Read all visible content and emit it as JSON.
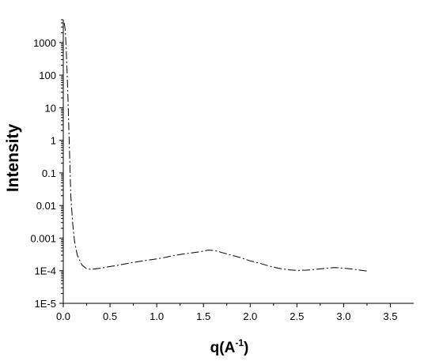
{
  "chart_data": {
    "type": "line",
    "title": "",
    "xlabel": "q(A",
    "xlabel_sup": "-1",
    "xlabel_close": ")",
    "ylabel": "Intensity",
    "y_scale": "log",
    "xlim": [
      0,
      3.75
    ],
    "ylim": [
      1e-05,
      5000
    ],
    "x_ticks": [
      "0.0",
      "0.5",
      "1.0",
      "1.5",
      "2.0",
      "2.5",
      "3.0",
      "3.5"
    ],
    "y_ticks": [
      "1E-5",
      "1E-4",
      "0.001",
      "0.01",
      "0.1",
      "1",
      "10",
      "100",
      "1000"
    ],
    "grid": false,
    "line_style": "dashed",
    "line_color": "#000000",
    "series": [
      {
        "x": [
          0.01,
          0.02,
          0.03,
          0.04,
          0.05,
          0.06,
          0.07,
          0.08,
          0.1,
          0.12,
          0.15,
          0.2,
          0.25,
          0.3,
          0.4,
          0.5,
          0.6,
          0.7,
          0.8,
          0.9,
          1.0,
          1.1,
          1.2,
          1.3,
          1.4,
          1.5,
          1.55,
          1.6,
          1.65,
          1.7,
          1.8,
          1.9,
          2.0,
          2.1,
          2.2,
          2.3,
          2.4,
          2.5,
          2.6,
          2.7,
          2.8,
          2.9,
          3.0,
          3.1,
          3.2,
          3.25
        ],
        "y": [
          4000,
          2500,
          800,
          150,
          20,
          2,
          0.2,
          0.02,
          0.003,
          0.0008,
          0.0003,
          0.00015,
          0.000115,
          0.00011,
          0.00012,
          0.000135,
          0.00015,
          0.00017,
          0.00019,
          0.00021,
          0.00023,
          0.00026,
          0.0003,
          0.00033,
          0.00036,
          0.0004,
          0.00043,
          0.00042,
          0.0004,
          0.00036,
          0.0003,
          0.00025,
          0.0002,
          0.00017,
          0.00014,
          0.00012,
          0.000108,
          0.000102,
          0.000104,
          0.00011,
          0.000118,
          0.000125,
          0.00012,
          0.000112,
          0.000102,
          9.75e-05
        ]
      }
    ]
  }
}
